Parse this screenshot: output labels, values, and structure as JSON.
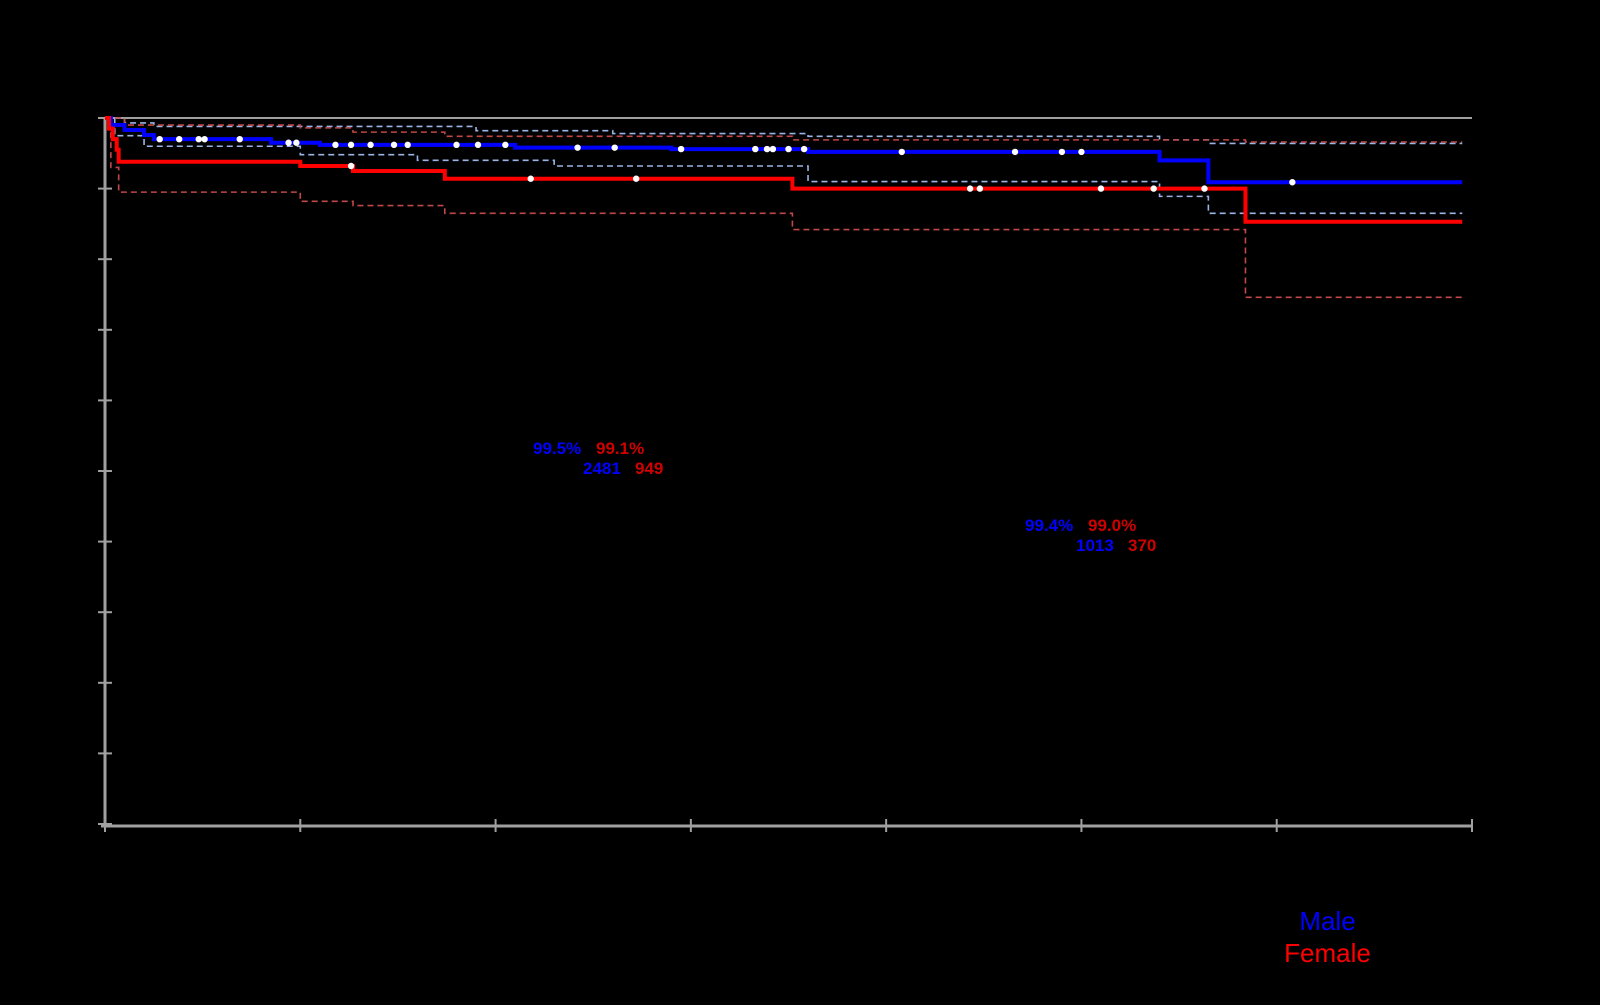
{
  "chart_data": {
    "type": "line",
    "subtype": "kaplan-meier step",
    "title": "",
    "xlabel": "",
    "ylabel": "",
    "ylim": [
      0,
      100
    ],
    "xlim": [
      0,
      7
    ],
    "x_ticks": [
      0,
      1,
      2,
      3,
      4,
      5,
      6,
      7
    ],
    "y_ticks": [
      0,
      10,
      20,
      30,
      40,
      50,
      60,
      70,
      80,
      90,
      100
    ],
    "tick_labels_visible": false,
    "grid": false,
    "legend_position": "bottom-right",
    "series": [
      {
        "name": "Male",
        "color": "#0000ff",
        "steps": [
          [
            0,
            100
          ],
          [
            0.03,
            99.0
          ],
          [
            0.1,
            98.3
          ],
          [
            0.2,
            97.6
          ],
          [
            0.25,
            97.0
          ],
          [
            0.85,
            96.5
          ],
          [
            1.1,
            96.2
          ],
          [
            2.1,
            95.8
          ],
          [
            2.9,
            95.6
          ],
          [
            3.6,
            95.2
          ],
          [
            5.4,
            94.0
          ],
          [
            5.65,
            90.9
          ],
          [
            6.95,
            90.9
          ]
        ],
        "ci_upper": [
          [
            0,
            100
          ],
          [
            0.1,
            99.3
          ],
          [
            0.25,
            98.8
          ],
          [
            1.9,
            98.2
          ],
          [
            2.6,
            97.8
          ],
          [
            3.6,
            97.4
          ],
          [
            5.4,
            96.9
          ],
          [
            5.65,
            96.4
          ],
          [
            6.95,
            96.4
          ]
        ],
        "ci_lower": [
          [
            0,
            100
          ],
          [
            0.05,
            97.5
          ],
          [
            0.2,
            96.0
          ],
          [
            1.0,
            94.8
          ],
          [
            1.6,
            94.0
          ],
          [
            2.3,
            93.2
          ],
          [
            3.6,
            91.0
          ],
          [
            5.4,
            88.9
          ],
          [
            5.65,
            86.5
          ],
          [
            6.95,
            86.5
          ]
        ],
        "censor_marks_x": [
          0.28,
          0.38,
          0.48,
          0.51,
          0.69,
          0.94,
          0.98,
          1.18,
          1.26,
          1.36,
          1.48,
          1.55,
          1.8,
          1.91,
          2.05,
          2.42,
          2.61,
          2.95,
          3.33,
          3.39,
          3.42,
          3.5,
          3.58,
          4.08,
          4.66,
          4.9,
          5.0,
          6.08
        ]
      },
      {
        "name": "Female",
        "color": "#ff0000",
        "steps": [
          [
            0,
            100
          ],
          [
            0.02,
            98.5
          ],
          [
            0.04,
            97.0
          ],
          [
            0.06,
            95.5
          ],
          [
            0.07,
            93.8
          ],
          [
            1.0,
            93.2
          ],
          [
            1.27,
            92.5
          ],
          [
            1.74,
            91.4
          ],
          [
            3.52,
            90.0
          ],
          [
            5.84,
            85.3
          ],
          [
            6.95,
            85.3
          ]
        ],
        "ci_upper": [
          [
            0,
            100
          ],
          [
            0.1,
            99.0
          ],
          [
            1.0,
            98.6
          ],
          [
            1.27,
            98.0
          ],
          [
            1.74,
            97.4
          ],
          [
            3.52,
            96.9
          ],
          [
            5.84,
            96.6
          ],
          [
            6.95,
            96.6
          ]
        ],
        "ci_lower": [
          [
            0,
            100
          ],
          [
            0.03,
            93.0
          ],
          [
            0.07,
            89.5
          ],
          [
            1.0,
            88.2
          ],
          [
            1.27,
            87.6
          ],
          [
            1.74,
            86.5
          ],
          [
            3.52,
            84.2
          ],
          [
            5.84,
            74.6
          ],
          [
            6.95,
            74.6
          ]
        ],
        "censor_marks_x": [
          1.26,
          2.18,
          2.72,
          4.43,
          4.48,
          5.1,
          5.37,
          5.63
        ]
      }
    ],
    "annotations": [
      {
        "id": "annot_1",
        "male_pct": "99.5%",
        "female_pct": "99.1%",
        "male_n": "2481",
        "female_n": "949"
      },
      {
        "id": "annot_2",
        "male_pct": "99.4%",
        "female_pct": "99.0%",
        "male_n": "1013",
        "female_n": "370"
      }
    ],
    "legend": [
      {
        "label": "Male",
        "color": "#0000ff"
      },
      {
        "label": "Female",
        "color": "#ff0000"
      }
    ]
  },
  "colors": {
    "background": "#000000",
    "axis": "#a0a0a0",
    "male": "#0000ff",
    "female": "#ff0000",
    "male_ci": "#9ab4e6",
    "female_ci": "#c04848",
    "censor": "#ffffff"
  },
  "legend": {
    "male_label": "Male",
    "female_label": "Female"
  },
  "annotations": {
    "a1_male_pct": "99.5%",
    "a1_female_pct": "99.1%",
    "a1_male_n": "2481",
    "a1_female_n": "949",
    "a2_male_pct": "99.4%",
    "a2_female_pct": "99.0%",
    "a2_male_n": "1013",
    "a2_female_n": "370"
  }
}
